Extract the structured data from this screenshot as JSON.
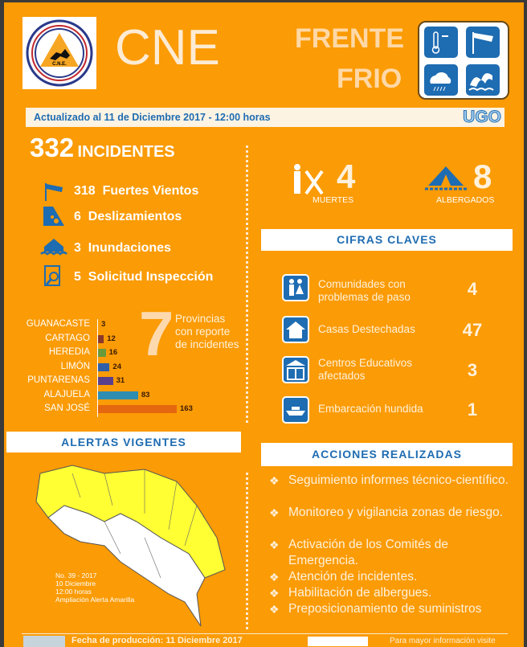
{
  "header": {
    "logo_text": "COMISIÓN NACIONAL DE PREVENCIÓN DE RIESGOS Y ATENCIÓN DE EMERGENCIAS · COSTA RICA · C.N.E.",
    "title": "CNE",
    "event_line1": "FRENTE",
    "event_line2": "FRIO",
    "hazard_icons": [
      "thermometer-icon",
      "windsock-icon",
      "rain-cloud-icon",
      "waves-icon"
    ]
  },
  "banner": {
    "updated": "Actualizado al 11 de Diciembre 2017 - 12:00 horas",
    "ugo_logo": "UGO"
  },
  "incidents": {
    "total": "332",
    "total_label": "INCIDENTES",
    "items": [
      {
        "count": "318",
        "label": "Fuertes Vientos",
        "icon": "windsock-icon"
      },
      {
        "count": "6",
        "label": "Deslizamientos",
        "icon": "landslide-icon"
      },
      {
        "count": "3",
        "label": "Inundaciones",
        "icon": "flood-icon"
      },
      {
        "count": "5",
        "label": "Solicitud Inspección",
        "icon": "inspection-icon"
      }
    ]
  },
  "casualties": {
    "deaths": "4",
    "deaths_label": "MUERTES",
    "shelters": "8",
    "shelters_label": "ALBERGADOS"
  },
  "provinces": {
    "count": "7",
    "label": "Provincias con reporte de incidentes"
  },
  "chart_data": {
    "type": "bar",
    "orientation": "horizontal",
    "categories": [
      "GUANACASTE",
      "CARTAGO",
      "HEREDIA",
      "LIMÓN",
      "PUNTARENAS",
      "ALAJUELA",
      "SAN JOSÉ"
    ],
    "values": [
      3,
      12,
      16,
      24,
      31,
      83,
      163
    ],
    "colors": [
      "#8B3A2A",
      "#8B3A2A",
      "#6B9A3A",
      "#2F5FA8",
      "#5A3F8C",
      "#2E8DB0",
      "#E4680F"
    ],
    "xlim": [
      0,
      163
    ]
  },
  "cifras": {
    "title": "CIFRAS CLAVES",
    "items": [
      {
        "label": "Comunidades con problemas de paso",
        "value": "4",
        "icon": "family-icon"
      },
      {
        "label": "Casas Destechadas",
        "value": "47",
        "icon": "house-icon"
      },
      {
        "label": "Centros Educativos afectados",
        "value": "3",
        "icon": "school-icon"
      },
      {
        "label": "Embarcación hundida",
        "value": "1",
        "icon": "boat-icon"
      }
    ]
  },
  "alertas": {
    "title": "ALERTAS VIGENTES",
    "note": [
      "No. 39 - 2017",
      "10 Diciembre",
      "12:00 horas",
      "Ampliación Alerta Amarilla"
    ]
  },
  "acciones": {
    "title": "ACCIONES REALIZADAS",
    "items": [
      "Seguimiento informes  técnico-científico.",
      "Monitoreo y vigilancia zonas de riesgo.",
      "Activación de los Comités de Emergencia.",
      "Atención de incidentes.",
      "Habilitación de albergues.",
      "Preposicionamiento de suministros"
    ]
  },
  "footer": {
    "production": "Fecha de  producción: 11 Diciembre 2017",
    "more_info": "Para mayor información visite"
  },
  "colors": {
    "background": "#FB9B05",
    "accent_blue": "#1E6CB2",
    "alert_yellow": "#FFFF33"
  }
}
